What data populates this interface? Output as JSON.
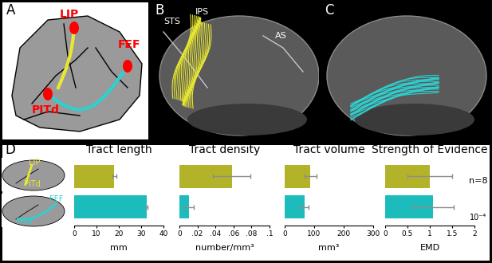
{
  "panels": {
    "A": {
      "letter": "A",
      "labels": [
        "LIP",
        "FEF",
        "PITd"
      ]
    },
    "B": {
      "letter": "B",
      "labels": [
        "STS",
        "IPS",
        "AS"
      ]
    },
    "C": {
      "letter": "C"
    },
    "D": {
      "letter": "D",
      "row_icons": [
        [
          "LIP",
          "PITd"
        ],
        [
          "FEF",
          "PITd"
        ]
      ],
      "annotations": [
        "n=8"
      ]
    }
  },
  "chart_data": [
    {
      "type": "bar",
      "orientation": "horizontal",
      "title": "Tract length",
      "xlabel": "mm",
      "categories": [
        null,
        null
      ],
      "values": [
        18,
        32.5
      ],
      "errors": [
        0.8,
        0.5
      ],
      "colors": [
        "#b3b32a",
        "#1cbcbc"
      ],
      "xlim": [
        0,
        40
      ],
      "xticks": [
        0,
        10,
        20,
        30,
        40
      ],
      "tick_labels": "x"
    },
    {
      "type": "bar",
      "orientation": "horizontal",
      "title": "Tract density",
      "xlabel": "number/mm³",
      "categories": [
        null,
        null
      ],
      "values": [
        0.058,
        0.011
      ],
      "errors": [
        0.021,
        0.005
      ],
      "colors": [
        "#b3b32a",
        "#1cbcbc"
      ],
      "xlim": [
        0,
        0.1
      ],
      "xticks": [
        0,
        {
          "value": 0.02,
          "label": ".02"
        },
        {
          "value": 0.04,
          "label": ".04"
        },
        {
          "value": 0.06,
          "label": ".06"
        },
        {
          "value": 0.08,
          "label": ".08"
        },
        {
          "value": 0.1,
          "label": ".1"
        }
      ],
      "tick_labels": "x"
    },
    {
      "type": "bar",
      "orientation": "horizontal",
      "title": "Tract volume",
      "xlabel": "mm³",
      "categories": [
        null,
        null
      ],
      "values": [
        87,
        67
      ],
      "errors": [
        20,
        15
      ],
      "colors": [
        "#b3b32a",
        "#1cbcbc"
      ],
      "xlim": [
        0,
        300
      ],
      "xticks": [
        0,
        100,
        200,
        300
      ],
      "tick_labels": "x"
    },
    {
      "type": "bar",
      "orientation": "horizontal",
      "title": "Strength of Evidence",
      "xlabel": "EMD",
      "categories": [
        null,
        null
      ],
      "values": [
        1.0,
        1.08
      ],
      "errors": [
        0.5,
        0.45
      ],
      "colors": [
        "#b3b32a",
        "#1cbcbc"
      ],
      "xlim": [
        0,
        2
      ],
      "xticks": [
        0,
        0.5,
        1,
        1.5,
        2
      ],
      "tick_labels": "x",
      "annotations": [
        "10⁻⁴"
      ]
    }
  ]
}
